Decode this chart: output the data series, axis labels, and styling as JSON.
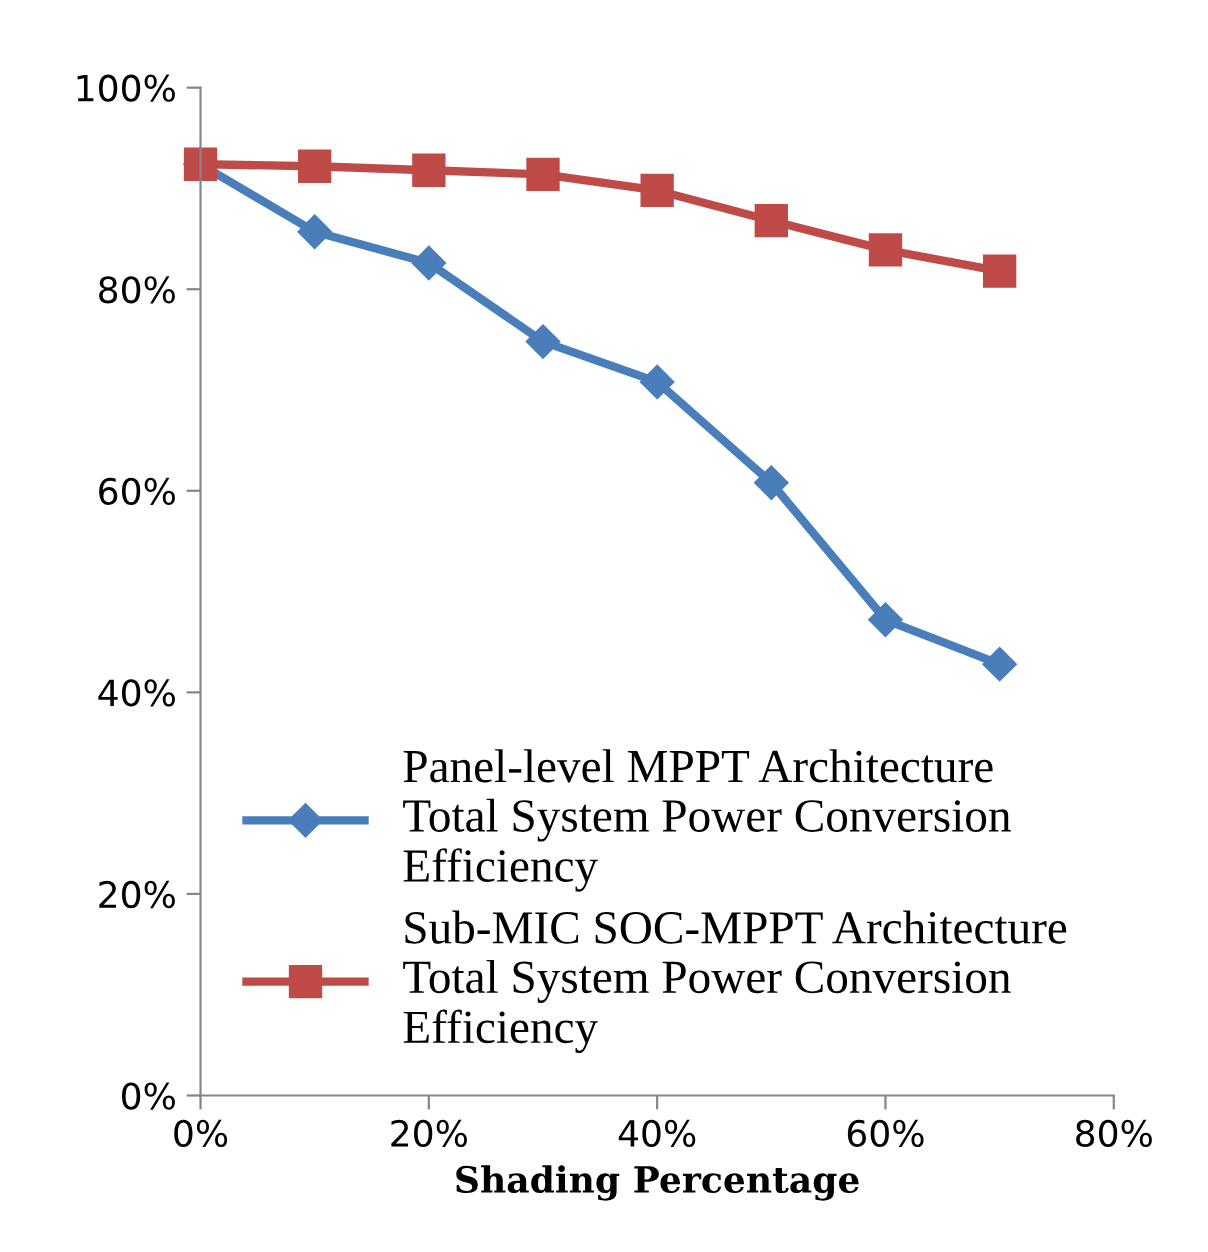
{
  "chart_data": {
    "type": "line",
    "xlabel": "Shading Percentage",
    "x": [
      0,
      10,
      20,
      30,
      40,
      50,
      60,
      70
    ],
    "series": [
      {
        "name": "Panel-level MPPT Architecture Total System Power Conversion Efficiency",
        "color": "#4a7ebb",
        "marker": "diamond",
        "values": [
          92.4,
          85.7,
          82.6,
          74.8,
          70.8,
          60.8,
          47.2,
          42.8
        ]
      },
      {
        "name": "Sub-MIC SOC-MPPT Architecture Total System Power Conversion Efficiency",
        "color": "#be4b48",
        "marker": "square",
        "values": [
          92.4,
          92.2,
          91.8,
          91.4,
          89.8,
          86.8,
          83.9,
          81.8
        ]
      }
    ],
    "xlim": [
      0,
      80
    ],
    "xticks": [
      {
        "value": 0,
        "label": "0%"
      },
      {
        "value": 20,
        "label": "20%"
      },
      {
        "value": 40,
        "label": "40%"
      },
      {
        "value": 60,
        "label": "60%"
      },
      {
        "value": 80,
        "label": "80%"
      }
    ],
    "ylim": [
      0,
      100
    ],
    "yticks": [
      {
        "value": 0,
        "label": "0%"
      },
      {
        "value": 20,
        "label": "20%"
      },
      {
        "value": 40,
        "label": "40%"
      },
      {
        "value": 60,
        "label": "60%"
      },
      {
        "value": 80,
        "label": "80%"
      },
      {
        "value": 100,
        "label": "100%"
      }
    ],
    "grid": false,
    "legend": "bottom",
    "line_style": "solid"
  }
}
